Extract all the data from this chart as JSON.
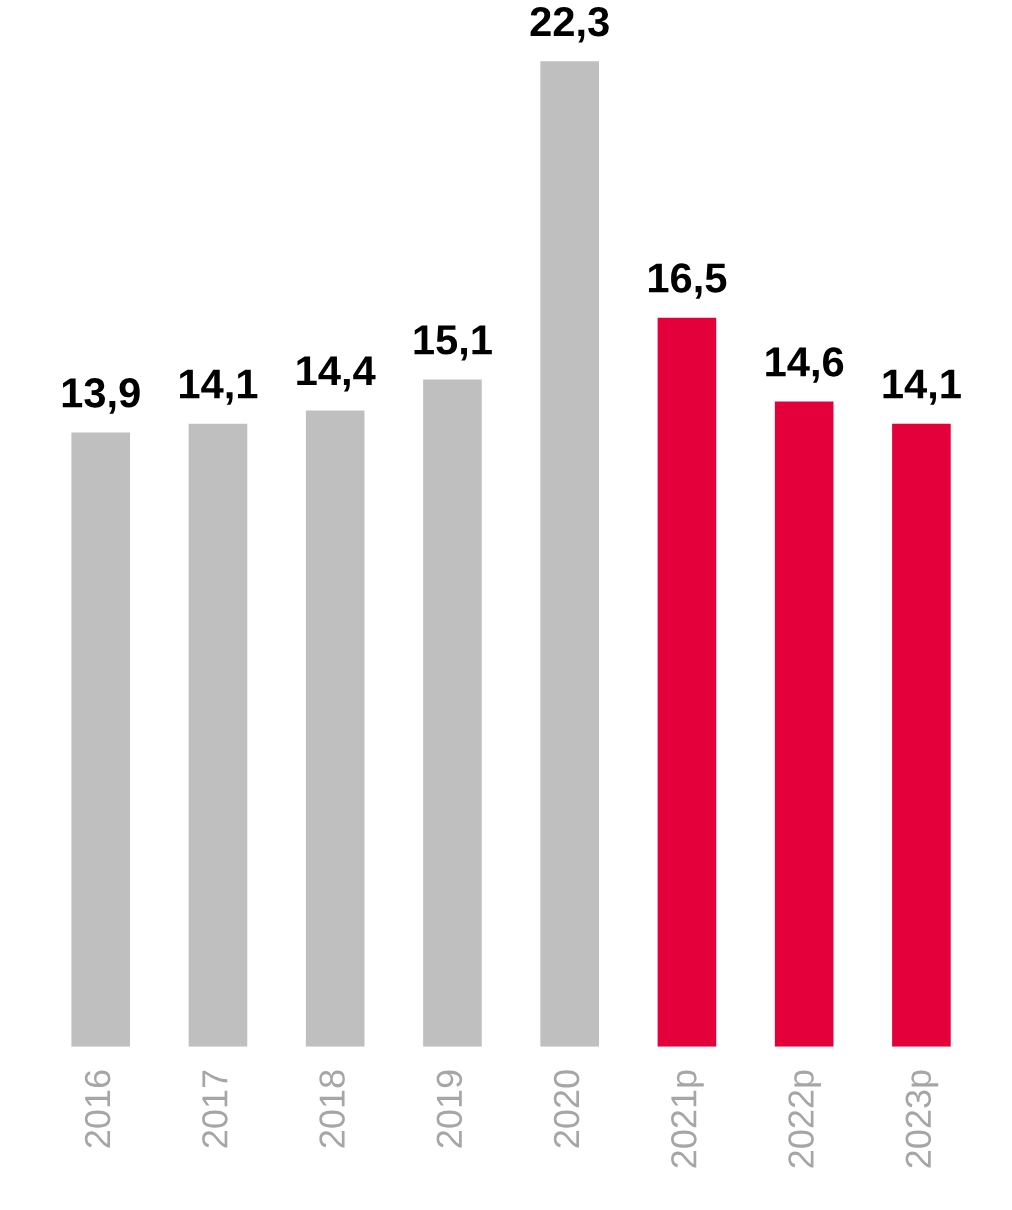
{
  "chart_data": {
    "type": "bar",
    "categories": [
      "2016",
      "2017",
      "2018",
      "2019",
      "2020",
      "2021p",
      "2022p",
      "2023p"
    ],
    "values": [
      13.9,
      14.1,
      14.4,
      15.1,
      22.3,
      16.5,
      14.6,
      14.1
    ],
    "colors": [
      "#bfbfbf",
      "#bfbfbf",
      "#bfbfbf",
      "#bfbfbf",
      "#bfbfbf",
      "#e4003a",
      "#e4003a",
      "#e4003a"
    ],
    "value_labels": [
      "13,9",
      "14,1",
      "14,4",
      "15,1",
      "22,3",
      "16,5",
      "14,6",
      "14,1"
    ],
    "tick_labels": "x",
    "grid": false,
    "legend": false
  }
}
